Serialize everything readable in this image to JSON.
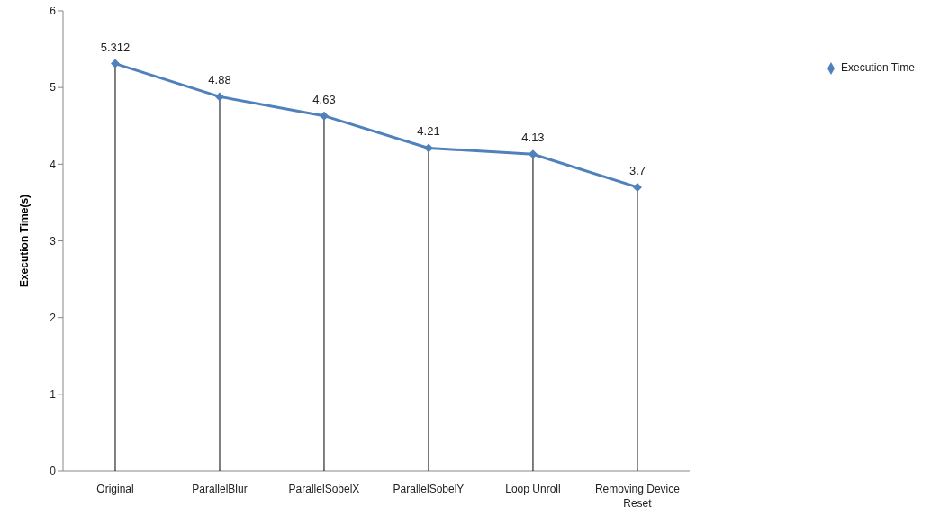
{
  "chart_data": {
    "type": "line",
    "ylabel": "Execution Time(s)",
    "categories": [
      "Original",
      "ParallelBlur",
      "ParallelSobelX",
      "ParallelSobelY",
      "Loop Unroll",
      "Removing Device Reset"
    ],
    "series": [
      {
        "name": "Execution Time",
        "color": "#4f81bd",
        "values": [
          5.312,
          4.88,
          4.63,
          4.21,
          4.13,
          3.7
        ]
      }
    ],
    "ylim": [
      0,
      6
    ],
    "yticks": [
      0,
      1,
      2,
      3,
      4,
      5,
      6
    ],
    "grid": "x",
    "legend": "top right",
    "marker": "diamond",
    "line_style": "solid",
    "data_labels": true
  }
}
